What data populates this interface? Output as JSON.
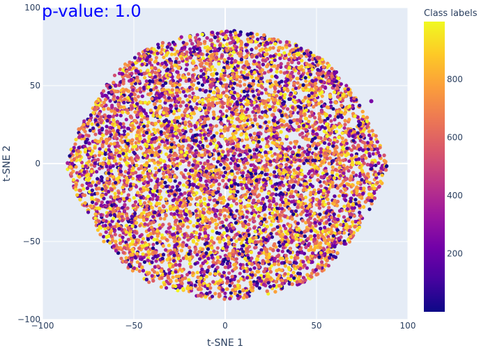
{
  "chart_data": {
    "type": "scatter",
    "title": "",
    "annotation": "p-value: 1.0",
    "xlabel": "t-SNE 1",
    "ylabel": "t-SNE 2",
    "xlim": [
      -100,
      100
    ],
    "ylim": [
      -100,
      100
    ],
    "xticks": [
      -100,
      -50,
      0,
      50,
      100
    ],
    "yticks": [
      -100,
      -50,
      0,
      50,
      100
    ],
    "xtick_labels": [
      "−100",
      "−50",
      "0",
      "50",
      "100"
    ],
    "ytick_labels": [
      "−100",
      "−50",
      "0",
      "50",
      "100"
    ],
    "grid": true,
    "colorbar": {
      "title": "Class labels",
      "range": [
        0,
        999
      ],
      "ticks": [
        200,
        400,
        600,
        800
      ],
      "tick_labels": [
        "200",
        "400",
        "600",
        "800"
      ],
      "colorscale": [
        "#0d0887",
        "#46039f",
        "#7201a8",
        "#9c179e",
        "#bd3786",
        "#d8576b",
        "#ed7953",
        "#fb9f3a",
        "#fdca26",
        "#f0f921"
      ]
    },
    "points": [
      {
        "x": -85,
        "y": 0,
        "c": 120
      },
      {
        "x": -80,
        "y": 22,
        "c": 700
      },
      {
        "x": -75,
        "y": -30,
        "c": 850
      },
      {
        "x": -60,
        "y": 50,
        "c": 300
      },
      {
        "x": -50,
        "y": -60,
        "c": 760
      },
      {
        "x": -40,
        "y": 10,
        "c": 880
      },
      {
        "x": -30,
        "y": 65,
        "c": 620
      },
      {
        "x": -20,
        "y": -80,
        "c": 950
      },
      {
        "x": -10,
        "y": 30,
        "c": 150
      },
      {
        "x": 0,
        "y": 0,
        "c": 700
      },
      {
        "x": 5,
        "y": 85,
        "c": 60
      },
      {
        "x": 10,
        "y": -40,
        "c": 820
      },
      {
        "x": 20,
        "y": 55,
        "c": 200
      },
      {
        "x": 30,
        "y": -20,
        "c": 90
      },
      {
        "x": 40,
        "y": 70,
        "c": 980
      },
      {
        "x": 50,
        "y": -50,
        "c": 740
      },
      {
        "x": 60,
        "y": 20,
        "c": 110
      },
      {
        "x": 70,
        "y": -30,
        "c": 650
      },
      {
        "x": 80,
        "y": 40,
        "c": 240
      },
      {
        "x": 85,
        "y": -5,
        "c": 560
      }
    ]
  },
  "style": {
    "plot_bg": "#e5ecf6",
    "grid_color": "#ffffff",
    "annotation_color": "#0000ff"
  }
}
